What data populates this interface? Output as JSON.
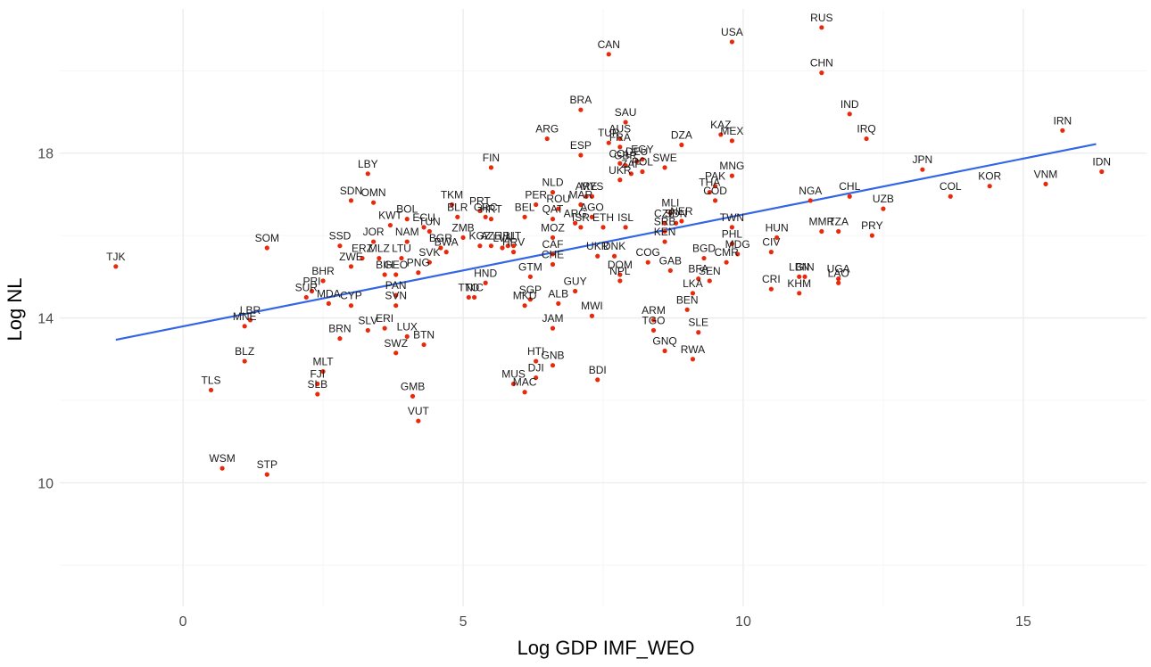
{
  "chart_data": {
    "type": "scatter",
    "xlabel": "Log GDP IMF_WEO",
    "ylabel": "Log NL",
    "xlim": [
      -2.2,
      17.2
    ],
    "ylim": [
      7,
      21.5
    ],
    "x_ticks": [
      0,
      5,
      10,
      15
    ],
    "y_ticks": [
      10,
      14,
      18
    ],
    "grid": true,
    "point_color": "#e8290b",
    "fit_line_color": "#3366e6",
    "fit_line": {
      "x": [
        -1.2,
        16.3
      ],
      "y": [
        13.47,
        18.22
      ]
    },
    "points": [
      {
        "label": "RUS",
        "x": 11.4,
        "y": 21.05
      },
      {
        "label": "USA",
        "x": 9.8,
        "y": 20.7
      },
      {
        "label": "CAN",
        "x": 7.6,
        "y": 20.4
      },
      {
        "label": "CHN",
        "x": 11.4,
        "y": 19.95
      },
      {
        "label": "IND",
        "x": 11.9,
        "y": 18.95
      },
      {
        "label": "IRN",
        "x": 15.7,
        "y": 18.55
      },
      {
        "label": "BRA",
        "x": 7.1,
        "y": 19.05
      },
      {
        "label": "SAU",
        "x": 7.9,
        "y": 18.75
      },
      {
        "label": "IRQ",
        "x": 12.2,
        "y": 18.35
      },
      {
        "label": "ARG",
        "x": 6.5,
        "y": 18.35
      },
      {
        "label": "KAZ",
        "x": 9.6,
        "y": 18.45
      },
      {
        "label": "MEX",
        "x": 9.8,
        "y": 18.3
      },
      {
        "label": "DZA",
        "x": 8.9,
        "y": 18.2
      },
      {
        "label": "AUS",
        "x": 7.8,
        "y": 18.35
      },
      {
        "label": "TUR",
        "x": 7.6,
        "y": 18.25
      },
      {
        "label": "FRA",
        "x": 7.8,
        "y": 18.15
      },
      {
        "label": "ESP",
        "x": 7.1,
        "y": 17.95
      },
      {
        "label": "EGY",
        "x": 8.2,
        "y": 17.85
      },
      {
        "label": "DEU",
        "x": 8.1,
        "y": 17.8
      },
      {
        "label": "GBR",
        "x": 7.9,
        "y": 17.7
      },
      {
        "label": "COL",
        "x": 7.8,
        "y": 17.75
      },
      {
        "label": "SWE",
        "x": 8.6,
        "y": 17.65
      },
      {
        "label": "POL",
        "x": 8.2,
        "y": 17.55
      },
      {
        "label": "ZAF",
        "x": 8.0,
        "y": 17.5
      },
      {
        "label": "UKR",
        "x": 7.8,
        "y": 17.35
      },
      {
        "label": "PAK",
        "x": 9.5,
        "y": 17.2
      },
      {
        "label": "THA",
        "x": 9.4,
        "y": 17.05
      },
      {
        "label": "COD",
        "x": 9.5,
        "y": 16.85
      },
      {
        "label": "JPN",
        "x": 13.2,
        "y": 17.6
      },
      {
        "label": "COL",
        "x": 13.7,
        "y": 16.95
      },
      {
        "label": "KOR",
        "x": 14.4,
        "y": 17.2
      },
      {
        "label": "VNM",
        "x": 15.4,
        "y": 17.25
      },
      {
        "label": "IDN",
        "x": 16.4,
        "y": 17.55
      },
      {
        "label": "MNG",
        "x": 9.8,
        "y": 17.45
      },
      {
        "label": "FIN",
        "x": 5.5,
        "y": 17.65
      },
      {
        "label": "LBY",
        "x": 3.3,
        "y": 17.5
      },
      {
        "label": "NGA",
        "x": 11.2,
        "y": 16.85
      },
      {
        "label": "CHL",
        "x": 11.9,
        "y": 16.95
      },
      {
        "label": "UZB",
        "x": 12.5,
        "y": 16.65
      },
      {
        "label": "MMR",
        "x": 11.4,
        "y": 16.1
      },
      {
        "label": "TZA",
        "x": 11.7,
        "y": 16.1
      },
      {
        "label": "PRY",
        "x": 12.3,
        "y": 16.0
      },
      {
        "label": "HUN",
        "x": 10.6,
        "y": 15.95
      },
      {
        "label": "CIV",
        "x": 10.5,
        "y": 15.6
      },
      {
        "label": "TWN",
        "x": 9.8,
        "y": 16.2
      },
      {
        "label": "PHL",
        "x": 9.8,
        "y": 15.8
      },
      {
        "label": "MDG",
        "x": 9.9,
        "y": 15.55
      },
      {
        "label": "CMR",
        "x": 9.7,
        "y": 15.35
      },
      {
        "label": "BGD",
        "x": 9.3,
        "y": 15.45
      },
      {
        "label": "BFA",
        "x": 9.2,
        "y": 14.95
      },
      {
        "label": "SEN",
        "x": 9.4,
        "y": 14.9
      },
      {
        "label": "LKA",
        "x": 9.1,
        "y": 14.6
      },
      {
        "label": "BEN",
        "x": 9.0,
        "y": 14.2
      },
      {
        "label": "SLE",
        "x": 9.2,
        "y": 13.65
      },
      {
        "label": "RWA",
        "x": 9.1,
        "y": 13.0
      },
      {
        "label": "CRI",
        "x": 10.5,
        "y": 14.7
      },
      {
        "label": "LBN",
        "x": 11.0,
        "y": 15.0
      },
      {
        "label": "GIN",
        "x": 11.1,
        "y": 15.0
      },
      {
        "label": "KHM",
        "x": 11.0,
        "y": 14.6
      },
      {
        "label": "UGA",
        "x": 11.7,
        "y": 14.95
      },
      {
        "label": "LAO",
        "x": 11.7,
        "y": 14.85
      },
      {
        "label": "MLI",
        "x": 8.7,
        "y": 16.55
      },
      {
        "label": "CZE",
        "x": 8.6,
        "y": 16.3
      },
      {
        "label": "SDN",
        "x": 8.8,
        "y": 16.3
      },
      {
        "label": "NER",
        "x": 8.9,
        "y": 16.35
      },
      {
        "label": "SRB",
        "x": 8.6,
        "y": 16.1
      },
      {
        "label": "KEN",
        "x": 8.6,
        "y": 15.85
      },
      {
        "label": "COG",
        "x": 8.3,
        "y": 15.35
      },
      {
        "label": "GAB",
        "x": 8.7,
        "y": 15.15
      },
      {
        "label": "NLD",
        "x": 6.6,
        "y": 17.05
      },
      {
        "label": "PER",
        "x": 6.3,
        "y": 16.75
      },
      {
        "label": "MAR",
        "x": 7.1,
        "y": 16.75
      },
      {
        "label": "ROU",
        "x": 6.7,
        "y": 16.65
      },
      {
        "label": "ARE",
        "x": 7.2,
        "y": 16.95
      },
      {
        "label": "MYS",
        "x": 7.3,
        "y": 16.95
      },
      {
        "label": "AGO",
        "x": 7.3,
        "y": 16.45
      },
      {
        "label": "QAT",
        "x": 6.6,
        "y": 16.4
      },
      {
        "label": "ARG",
        "x": 7.0,
        "y": 16.3
      },
      {
        "label": "ISR",
        "x": 7.1,
        "y": 16.2
      },
      {
        "label": "ETH",
        "x": 7.5,
        "y": 16.2
      },
      {
        "label": "ISL",
        "x": 7.9,
        "y": 16.2
      },
      {
        "label": "BEL",
        "x": 6.1,
        "y": 16.45
      },
      {
        "label": "MOZ",
        "x": 6.6,
        "y": 15.95
      },
      {
        "label": "CAF",
        "x": 6.6,
        "y": 15.55
      },
      {
        "label": "CHE",
        "x": 6.6,
        "y": 15.3
      },
      {
        "label": "UKR",
        "x": 7.4,
        "y": 15.5
      },
      {
        "label": "DNK",
        "x": 7.7,
        "y": 15.5
      },
      {
        "label": "DOM",
        "x": 7.8,
        "y": 15.05
      },
      {
        "label": "NPL",
        "x": 7.8,
        "y": 14.9
      },
      {
        "label": "GUY",
        "x": 7.0,
        "y": 14.65
      },
      {
        "label": "ALB",
        "x": 6.7,
        "y": 14.35
      },
      {
        "label": "MWI",
        "x": 7.3,
        "y": 14.05
      },
      {
        "label": "GTM",
        "x": 6.2,
        "y": 15.0
      },
      {
        "label": "SGP",
        "x": 6.2,
        "y": 14.45
      },
      {
        "label": "MKD",
        "x": 6.1,
        "y": 14.3
      },
      {
        "label": "JAM",
        "x": 6.6,
        "y": 13.75
      },
      {
        "label": "ARM",
        "x": 8.4,
        "y": 13.95
      },
      {
        "label": "TGO",
        "x": 8.4,
        "y": 13.7
      },
      {
        "label": "GNQ",
        "x": 8.6,
        "y": 13.2
      },
      {
        "label": "HTI",
        "x": 6.3,
        "y": 12.95
      },
      {
        "label": "GNB",
        "x": 6.6,
        "y": 12.85
      },
      {
        "label": "DJI",
        "x": 6.3,
        "y": 12.55
      },
      {
        "label": "MUS",
        "x": 5.9,
        "y": 12.4
      },
      {
        "label": "MAC",
        "x": 6.1,
        "y": 12.2
      },
      {
        "label": "BDI",
        "x": 7.4,
        "y": 12.5
      },
      {
        "label": "TKM",
        "x": 4.8,
        "y": 16.75
      },
      {
        "label": "PRT",
        "x": 5.3,
        "y": 16.6
      },
      {
        "label": "BLR",
        "x": 4.9,
        "y": 16.45
      },
      {
        "label": "GRC",
        "x": 5.4,
        "y": 16.45
      },
      {
        "label": "HRT",
        "x": 5.5,
        "y": 16.4
      },
      {
        "label": "ECU",
        "x": 4.3,
        "y": 16.2
      },
      {
        "label": "BOL",
        "x": 4.0,
        "y": 16.4
      },
      {
        "label": "TUN",
        "x": 4.4,
        "y": 16.1
      },
      {
        "label": "KWT",
        "x": 3.7,
        "y": 16.25
      },
      {
        "label": "NAM",
        "x": 4.0,
        "y": 15.85
      },
      {
        "label": "ZMB",
        "x": 5.0,
        "y": 15.95
      },
      {
        "label": "BGR",
        "x": 4.6,
        "y": 15.7
      },
      {
        "label": "BWA",
        "x": 4.7,
        "y": 15.6
      },
      {
        "label": "KGZ",
        "x": 5.3,
        "y": 15.75
      },
      {
        "label": "AZE",
        "x": 5.5,
        "y": 15.75
      },
      {
        "label": "IRL",
        "x": 5.8,
        "y": 15.75
      },
      {
        "label": "LIT",
        "x": 5.9,
        "y": 15.75
      },
      {
        "label": "LVA",
        "x": 5.7,
        "y": 15.7
      },
      {
        "label": "HRV",
        "x": 5.9,
        "y": 15.6
      },
      {
        "label": "SVK",
        "x": 4.4,
        "y": 15.35
      },
      {
        "label": "PNG",
        "x": 4.2,
        "y": 15.1
      },
      {
        "label": "HND",
        "x": 5.4,
        "y": 14.85
      },
      {
        "label": "TTO",
        "x": 5.1,
        "y": 14.5
      },
      {
        "label": "NIC",
        "x": 5.2,
        "y": 14.5
      },
      {
        "label": "SDN",
        "x": 3.0,
        "y": 16.85
      },
      {
        "label": "OMN",
        "x": 3.4,
        "y": 16.8
      },
      {
        "label": "JOR",
        "x": 3.4,
        "y": 15.85
      },
      {
        "label": "LTU",
        "x": 3.9,
        "y": 15.45
      },
      {
        "label": "SSD",
        "x": 2.8,
        "y": 15.75
      },
      {
        "label": "ERZ",
        "x": 3.2,
        "y": 15.45
      },
      {
        "label": "MLZ",
        "x": 3.5,
        "y": 15.45
      },
      {
        "label": "GEO",
        "x": 3.8,
        "y": 15.05
      },
      {
        "label": "BIH",
        "x": 3.6,
        "y": 15.05
      },
      {
        "label": "ZWE",
        "x": 3.0,
        "y": 15.25
      },
      {
        "label": "SOM",
        "x": 1.5,
        "y": 15.7
      },
      {
        "label": "TJK",
        "x": -1.2,
        "y": 15.25
      },
      {
        "label": "BHR",
        "x": 2.5,
        "y": 14.9
      },
      {
        "label": "PRI",
        "x": 2.3,
        "y": 14.65
      },
      {
        "label": "SUR",
        "x": 2.2,
        "y": 14.5
      },
      {
        "label": "MDA",
        "x": 2.6,
        "y": 14.35
      },
      {
        "label": "CYP",
        "x": 3.0,
        "y": 14.3
      },
      {
        "label": "PAN",
        "x": 3.8,
        "y": 14.55
      },
      {
        "label": "SVN",
        "x": 3.8,
        "y": 14.3
      },
      {
        "label": "ERI",
        "x": 3.6,
        "y": 13.75
      },
      {
        "label": "SLV",
        "x": 3.3,
        "y": 13.7
      },
      {
        "label": "BRN",
        "x": 2.8,
        "y": 13.5
      },
      {
        "label": "LUX",
        "x": 4.0,
        "y": 13.55
      },
      {
        "label": "BTN",
        "x": 4.3,
        "y": 13.35
      },
      {
        "label": "SWZ",
        "x": 3.8,
        "y": 13.15
      },
      {
        "label": "LBR",
        "x": 1.2,
        "y": 13.95
      },
      {
        "label": "MNE",
        "x": 1.1,
        "y": 13.8
      },
      {
        "label": "BLZ",
        "x": 1.1,
        "y": 12.95
      },
      {
        "label": "MLT",
        "x": 2.5,
        "y": 12.7
      },
      {
        "label": "FJI",
        "x": 2.4,
        "y": 12.4
      },
      {
        "label": "SLB",
        "x": 2.4,
        "y": 12.15
      },
      {
        "label": "GMB",
        "x": 4.1,
        "y": 12.1
      },
      {
        "label": "VUT",
        "x": 4.2,
        "y": 11.5
      },
      {
        "label": "TLS",
        "x": 0.5,
        "y": 12.25
      },
      {
        "label": "WSM",
        "x": 0.7,
        "y": 10.35
      },
      {
        "label": "STP",
        "x": 1.5,
        "y": 10.2
      }
    ]
  }
}
